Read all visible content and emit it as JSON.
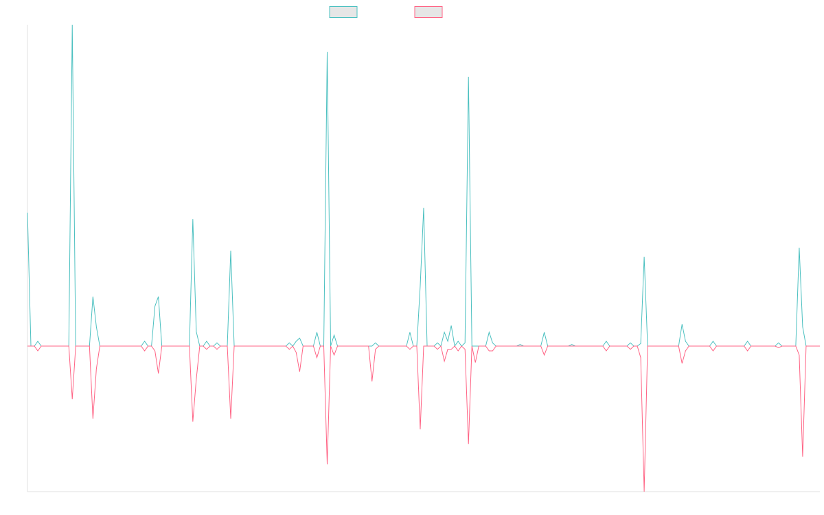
{
  "chart_data": {
    "type": "line",
    "categories": [
      null,
      null,
      null,
      null,
      null,
      null,
      null,
      null,
      null,
      null,
      null,
      null,
      null,
      null,
      null,
      null,
      null,
      null,
      null,
      null,
      null,
      null,
      null,
      null,
      null,
      null,
      null,
      null,
      null,
      null,
      null,
      null,
      null,
      null,
      null,
      null,
      null,
      null,
      null,
      null,
      null,
      null,
      null,
      null,
      null,
      null,
      null,
      null,
      null,
      null,
      null,
      null,
      null,
      null,
      null,
      null,
      null,
      null,
      null,
      null,
      null,
      null,
      null,
      null,
      null,
      null,
      null,
      null,
      null,
      null,
      null,
      null,
      null,
      null,
      null,
      null,
      null,
      null,
      null,
      null,
      null,
      null,
      null,
      null,
      null,
      null,
      null,
      null,
      null,
      null,
      null,
      null,
      null,
      null,
      null,
      null,
      null,
      null,
      null,
      null,
      null,
      null,
      null,
      null,
      null,
      null,
      null,
      null,
      null,
      null,
      null,
      null,
      null,
      null,
      null,
      null,
      null,
      null,
      null,
      null,
      null,
      null,
      null,
      null,
      null,
      null,
      null,
      null,
      null,
      null,
      null,
      null,
      null,
      null,
      null,
      null,
      null,
      null,
      null,
      null,
      null,
      null,
      null,
      null,
      null,
      null,
      null,
      null,
      null,
      null,
      null,
      null,
      null,
      null,
      null,
      null,
      null,
      null,
      null,
      null,
      null,
      null,
      null,
      null,
      null,
      null,
      null,
      null,
      null,
      null,
      null,
      null,
      null,
      null,
      null,
      null,
      null,
      null,
      null,
      null,
      null,
      null,
      null,
      null,
      null,
      null,
      null,
      null,
      null,
      null,
      null,
      null,
      null,
      null,
      null,
      null,
      null,
      null,
      null,
      null,
      null,
      null,
      null,
      null,
      null,
      null,
      null,
      null,
      null,
      null,
      null,
      null,
      null,
      null,
      null,
      null,
      null,
      null,
      null,
      null,
      null,
      null,
      null,
      null,
      null,
      null,
      null,
      null,
      null,
      null,
      null
    ],
    "ylim": [
      -45.3,
      100
    ],
    "grid": false,
    "series": [
      {
        "color": "#4bc0c0",
        "values": [
          41.5,
          0,
          0,
          1.5,
          0,
          0,
          0,
          0,
          0,
          0,
          0,
          0,
          0,
          100,
          0,
          0,
          0,
          0,
          0,
          15.4,
          6,
          0,
          0,
          0,
          0,
          0,
          0,
          0,
          0,
          0,
          0,
          0,
          0,
          0,
          1.5,
          0,
          0,
          12.4,
          15.4,
          0,
          0,
          0,
          0,
          0,
          0,
          0,
          0,
          0,
          39.5,
          4.5,
          0,
          0,
          1.5,
          0,
          0,
          1,
          0,
          0,
          0,
          29.7,
          0,
          0,
          0,
          0,
          0,
          0,
          0,
          0,
          0,
          0,
          0,
          0,
          0,
          0,
          0,
          0,
          1,
          0,
          1.5,
          2.5,
          0,
          0,
          0,
          0,
          4.3,
          0,
          0,
          91.5,
          0,
          3.4,
          0,
          0,
          0,
          0,
          0,
          0,
          0,
          0,
          0,
          0,
          0,
          1,
          0,
          0,
          0,
          0,
          0,
          0,
          0,
          0,
          0,
          4.3,
          0,
          0,
          18.8,
          43,
          0,
          0,
          0,
          1,
          0,
          4.3,
          1.5,
          6.4,
          0,
          1.5,
          0,
          1,
          83.8,
          0,
          0,
          0,
          0,
          0,
          4.3,
          1,
          0,
          0,
          0,
          0,
          0,
          0,
          0,
          0.5,
          0,
          0,
          0,
          0,
          0,
          0,
          4.3,
          0,
          0,
          0,
          0,
          0,
          0,
          0,
          0.5,
          0,
          0,
          0,
          0,
          0,
          0,
          0,
          0,
          0,
          1.5,
          0,
          0,
          0,
          0,
          0,
          0,
          1,
          0,
          0,
          0.8,
          27.8,
          0,
          0,
          0,
          0,
          0,
          0,
          0,
          0,
          0,
          0,
          6.8,
          1.5,
          0,
          0,
          0,
          0,
          0,
          0,
          0,
          1.5,
          0,
          0,
          0,
          0,
          0,
          0,
          0,
          0,
          0,
          1.5,
          0,
          0,
          0,
          0,
          0,
          0,
          0,
          0,
          1,
          0,
          0,
          0,
          0,
          0,
          30.6,
          6,
          0,
          0,
          0,
          0,
          0
        ]
      },
      {
        "color": "#ff6384",
        "values": [
          0,
          0,
          0,
          -1.5,
          0,
          0,
          0,
          0,
          0,
          0,
          0,
          0,
          0,
          -16.5,
          0,
          0,
          0,
          0,
          0,
          -22.6,
          -7.1,
          0,
          0,
          0,
          0,
          0,
          0,
          0,
          0,
          0,
          0,
          0,
          0,
          0,
          -1.5,
          0,
          0,
          -1.5,
          -8.5,
          0,
          0,
          0,
          0,
          0,
          0,
          0,
          0,
          0,
          -23.5,
          -10.3,
          0,
          0,
          -1,
          0,
          0,
          -1,
          0,
          0,
          0,
          -22.6,
          0,
          0,
          0,
          0,
          0,
          0,
          0,
          0,
          0,
          0,
          0,
          0,
          0,
          0,
          0,
          0,
          -1,
          0,
          -2,
          -8,
          0,
          0,
          0,
          0,
          -3.6,
          0,
          0,
          -36.8,
          0,
          -2.8,
          0,
          0,
          0,
          0,
          0,
          0,
          0,
          0,
          0,
          0,
          -11,
          -1,
          0,
          0,
          0,
          0,
          0,
          0,
          0,
          0,
          0,
          -1,
          0,
          0,
          -25.9,
          0,
          0,
          0,
          0,
          -1,
          0,
          -4.7,
          -1,
          -1,
          0,
          -1.5,
          0,
          -1,
          -30.5,
          0,
          -5.1,
          0,
          0,
          0,
          -1.5,
          -1.5,
          0,
          0,
          0,
          0,
          0,
          0,
          0,
          0,
          0,
          0,
          0,
          0,
          0,
          0,
          -2.8,
          0,
          0,
          0,
          0,
          0,
          0,
          0,
          0,
          0,
          0,
          0,
          0,
          0,
          0,
          0,
          0,
          0,
          -1.5,
          0,
          0,
          0,
          0,
          0,
          0,
          -1,
          0,
          0,
          -3.6,
          -45.3,
          0,
          0,
          0,
          0,
          0,
          0,
          0,
          0,
          0,
          0,
          -5.4,
          -1.5,
          0,
          0,
          0,
          0,
          0,
          0,
          0,
          -1.5,
          0,
          0,
          0,
          0,
          0,
          0,
          0,
          0,
          0,
          -1.5,
          0,
          0,
          0,
          0,
          0,
          0,
          0,
          0,
          -0.5,
          0,
          0,
          0,
          0,
          0,
          -2.8,
          -34.4,
          0,
          0,
          0,
          0,
          0
        ]
      }
    ]
  }
}
